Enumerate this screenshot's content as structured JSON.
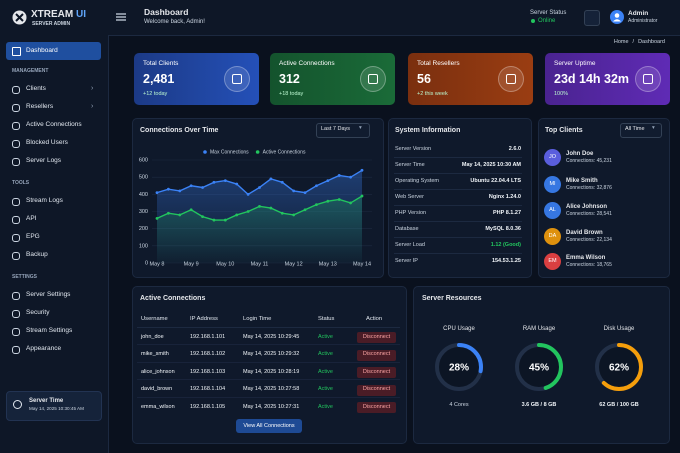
{
  "brand": {
    "name": "XTREAM",
    "accent": "UI",
    "subtitle": "SERVER ADMIN"
  },
  "sidebar": {
    "primary": "Dashboard",
    "sections": [
      {
        "title": "MANAGEMENT",
        "items": [
          "Clients",
          "Resellers",
          "Active Connections",
          "Blocked Users",
          "Server Logs"
        ]
      },
      {
        "title": "TOOLS",
        "items": [
          "Stream Logs",
          "API",
          "EPG",
          "Backup"
        ]
      },
      {
        "title": "SETTINGS",
        "items": [
          "Server Settings",
          "Security",
          "Stream Settings",
          "Appearance"
        ]
      }
    ],
    "server_time": {
      "title": "Server Time",
      "value": "May 14, 2025 10:30:45 AM"
    }
  },
  "header": {
    "title": "Dashboard",
    "subtitle": "Welcome back, Admin!",
    "status_label": "Server Status",
    "status": "Online",
    "user": "Admin",
    "role": "Administrator"
  },
  "breadcrumb": {
    "items": [
      "Home",
      "Dashboard"
    ],
    "separator": "/"
  },
  "stats": [
    {
      "label": "Total Clients",
      "value": "2,481",
      "change": "+12 today"
    },
    {
      "label": "Active Connections",
      "value": "312",
      "change": "+18 today"
    },
    {
      "label": "Total Resellers",
      "value": "56",
      "change": "+2 this week"
    },
    {
      "label": "Server Uptime",
      "value": "23d 14h 32m",
      "change": "100%"
    }
  ],
  "connections_chart": {
    "type": "line",
    "title": "Connections Over Time",
    "filter": "Last 7 Days",
    "categories": [
      "May 8",
      null,
      null,
      "May 9",
      null,
      null,
      "May 10",
      null,
      null,
      "May 11",
      null,
      null,
      "May 12",
      null,
      null,
      "May 13",
      null,
      null,
      "May 14"
    ],
    "series": [
      {
        "name": "Max Connections",
        "color": "#3b82f6",
        "values": [
          410,
          430,
          420,
          450,
          440,
          470,
          480,
          460,
          400,
          440,
          490,
          470,
          420,
          410,
          450,
          480,
          510,
          500,
          540
        ]
      },
      {
        "name": "Active Connections",
        "color": "#22c55e",
        "values": [
          260,
          290,
          280,
          310,
          270,
          250,
          250,
          280,
          300,
          330,
          320,
          290,
          280,
          310,
          340,
          360,
          370,
          350,
          390
        ]
      }
    ],
    "ylim": [
      0,
      600
    ],
    "yticks": [
      0,
      100,
      200,
      300,
      400,
      500,
      600
    ],
    "grid": true
  },
  "system_info": {
    "title": "System Information",
    "rows": [
      [
        "Server Version",
        "2.6.0"
      ],
      [
        "Server Time",
        "May 14, 2025 10:30 AM"
      ],
      [
        "Operating System",
        "Ubuntu 22.04.4 LTS"
      ],
      [
        "Web Server",
        "Nginx 1.24.0"
      ],
      [
        "PHP Version",
        "PHP 8.1.27"
      ],
      [
        "Database",
        "MySQL 8.0.36"
      ],
      [
        "Server Load",
        "1.12 (Good)"
      ],
      [
        "Server IP",
        "154.53.1.25"
      ]
    ]
  },
  "top_clients": {
    "title": "Top Clients",
    "filter": "All Time",
    "items": [
      {
        "initials": "JO",
        "name": "John Doe",
        "connections": "Connections: 45,231",
        "color": "#6366f1"
      },
      {
        "initials": "MI",
        "name": "Mike Smith",
        "connections": "Connections: 32,876",
        "color": "#3b82f6"
      },
      {
        "initials": "AL",
        "name": "Alice Johnson",
        "connections": "Connections: 28,541",
        "color": "#3b82f6"
      },
      {
        "initials": "DA",
        "name": "David Brown",
        "connections": "Connections: 22,134",
        "color": "#f59e0b"
      },
      {
        "initials": "EM",
        "name": "Emma Wilson",
        "connections": "Connections: 18,765",
        "color": "#ef4444"
      }
    ]
  },
  "active_connections": {
    "title": "Active Connections",
    "columns": [
      "Username",
      "IP Address",
      "Login Time",
      "Status",
      "Action"
    ],
    "rows": [
      [
        "john_doe",
        "192.168.1.101",
        "May 14, 2025 10:29:45",
        "Active",
        "Disconnect"
      ],
      [
        "mike_smith",
        "192.168.1.102",
        "May 14, 2025 10:29:32",
        "Active",
        "Disconnect"
      ],
      [
        "alice_johnson",
        "192.168.1.103",
        "May 14, 2025 10:28:19",
        "Active",
        "Disconnect"
      ],
      [
        "david_brown",
        "192.168.1.104",
        "May 14, 2025 10:27:58",
        "Active",
        "Disconnect"
      ],
      [
        "emma_wilson",
        "192.168.1.105",
        "May 14, 2025 10:27:31",
        "Active",
        "Disconnect"
      ]
    ],
    "button": "View All Connections"
  },
  "resources": {
    "title": "Server Resources",
    "items": [
      {
        "name": "CPU Usage",
        "value": 28,
        "value_label": "28%",
        "detail": "4 Cores",
        "color": "#3b82f6"
      },
      {
        "name": "RAM Usage",
        "value": 45,
        "value_label": "45%",
        "detail": "3.6 GB / 8 GB",
        "color": "#22c55e"
      },
      {
        "name": "Disk Usage",
        "value": 62,
        "value_label": "62%",
        "detail": "62 GB / 100 GB",
        "color": "#f59e0b"
      }
    ],
    "max": 100
  }
}
